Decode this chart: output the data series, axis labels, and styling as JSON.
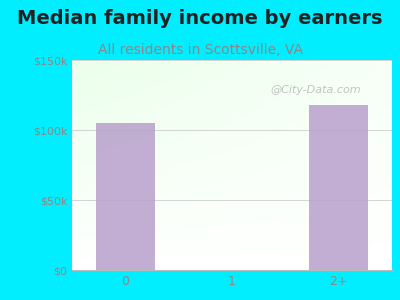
{
  "title": "Median family income by earners",
  "subtitle": "All residents in Scottsville, VA",
  "categories": [
    "0",
    "1",
    "2+"
  ],
  "values": [
    105000,
    0,
    118000
  ],
  "bar_color": "#b8a0cc",
  "bg_outer": "#00eeff",
  "ylim": [
    0,
    150000
  ],
  "yticks": [
    0,
    50000,
    100000,
    150000
  ],
  "ytick_labels": [
    "$0",
    "$50k",
    "$100k",
    "$150k"
  ],
  "title_fontsize": 14,
  "subtitle_fontsize": 10,
  "title_color": "#222222",
  "subtitle_color": "#888888",
  "tick_color": "#888888",
  "watermark": "@City-Data.com",
  "watermark_color": "#aaaaaa"
}
